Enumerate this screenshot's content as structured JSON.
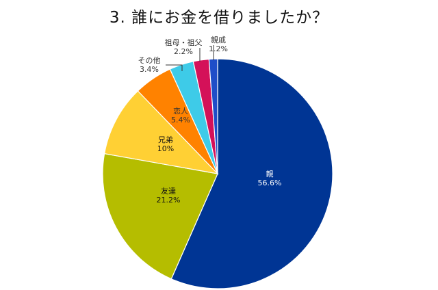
{
  "title": "3. 誰にお金を借りましたか？",
  "chart_data": {
    "type": "pie",
    "title": "3. 誰にお金を借りましたか？",
    "slices": [
      {
        "label": "親",
        "value": 56.6,
        "value_label": "56.6%",
        "color": "#003594"
      },
      {
        "label": "友達",
        "value": 21.2,
        "value_label": "21.2%",
        "color": "#b5bd00"
      },
      {
        "label": "兄弟",
        "value": 10,
        "value_label": "10%",
        "color": "#ffd034"
      },
      {
        "label": "恋人",
        "value": 5.4,
        "value_label": "5.4%",
        "color": "#ff8200"
      },
      {
        "label": "その他",
        "value": 3.4,
        "value_label": "3.4%",
        "color": "#3ecbe8"
      },
      {
        "label": "祖母・祖父",
        "value": 2.2,
        "value_label": "2.2%",
        "color": "#d41159"
      },
      {
        "label": "親戚",
        "value": 1.2,
        "value_label": "1.2%",
        "color": "#1f4ec8"
      }
    ],
    "start_angle_deg": 0,
    "direction": "clockwise",
    "legend": "none"
  }
}
